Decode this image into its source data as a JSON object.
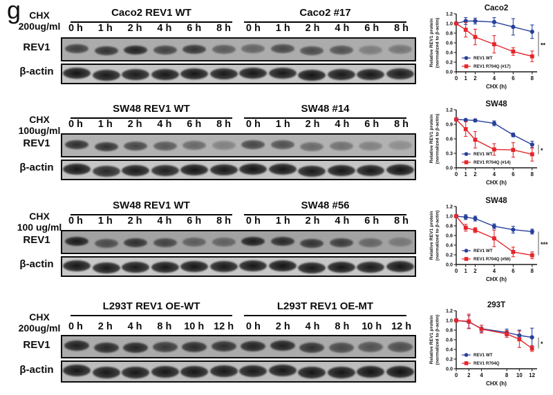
{
  "figure_label": "g",
  "colors": {
    "rev1_wt": "#27409B",
    "rev1_mut": "#E4262C",
    "sig_bracket": "#8a8a8a",
    "axis": "#1a1a1a"
  },
  "axis_labels": {
    "ylabel_line1": "Relative REV1 protein",
    "ylabel_line2": "(normalized to β-actin)",
    "xlabel": "CHX (h)"
  },
  "rows": [
    {
      "chx_line1": "CHX",
      "chx_line2": "200ug/ml",
      "blot_labels": [
        "REV1",
        "β-actin"
      ],
      "groups": [
        {
          "title": "Caco2 REV1 WT",
          "timepoints": [
            "0 h",
            "1 h",
            "2 h",
            "4 h",
            "6 h",
            "8 h"
          ]
        },
        {
          "title": "Caco2 #17",
          "timepoints": [
            "0 h",
            "1 h",
            "2 h",
            "4 h",
            "6 h",
            "8 h"
          ]
        }
      ],
      "blots": {
        "rev1": {
          "bg": "#acacac",
          "band_width": 34,
          "band_height": 13,
          "intensities": [
            0.7,
            0.78,
            0.88,
            0.68,
            0.76,
            0.52,
            0.46,
            0.64,
            0.62,
            0.58,
            0.3,
            0.35
          ]
        },
        "actin": {
          "bg": "#c6c6c6",
          "band_width": 40,
          "band_height": 16,
          "intensities": [
            0.96,
            0.93,
            0.92,
            0.94,
            0.95,
            0.93,
            0.95,
            0.94,
            0.96,
            0.93,
            0.94,
            0.92
          ]
        }
      }
    },
    {
      "chx_line1": "CHX",
      "chx_line2": "100ug/ml",
      "blot_labels": [
        "REV1",
        "β-actin"
      ],
      "groups": [
        {
          "title": "SW48 REV1 WT",
          "timepoints": [
            "0 h",
            "1 h",
            "2 h",
            "4 h",
            "6 h",
            "8 h"
          ]
        },
        {
          "title": "SW48 #14",
          "timepoints": [
            "0 h",
            "1 h",
            "2 h",
            "4 h",
            "6 h",
            "8 h"
          ]
        }
      ],
      "blots": {
        "rev1": {
          "bg": "#b2b2b2",
          "band_width": 34,
          "band_height": 13,
          "intensities": [
            0.8,
            0.78,
            0.66,
            0.55,
            0.45,
            0.3,
            0.66,
            0.6,
            0.44,
            0.4,
            0.3,
            0.22
          ]
        },
        "actin": {
          "bg": "#c6c6c6",
          "band_width": 40,
          "band_height": 16,
          "intensities": [
            0.95,
            0.85,
            0.93,
            0.9,
            0.96,
            0.94,
            0.96,
            0.95,
            0.93,
            0.95,
            0.94,
            0.96
          ]
        }
      }
    },
    {
      "chx_line1": "CHX",
      "chx_line2": "100 ug/ml",
      "blot_labels": [
        "REV1",
        "β-actin"
      ],
      "groups": [
        {
          "title": "SW48 REV1 WT",
          "timepoints": [
            "0 h",
            "1 h",
            "2 h",
            "4 h",
            "6 h",
            "8 h"
          ]
        },
        {
          "title": "SW48 #56",
          "timepoints": [
            "0 h",
            "1 h",
            "2 h",
            "4 h",
            "6 h",
            "8 h"
          ]
        }
      ],
      "blots": {
        "rev1": {
          "bg": "#a2a2a2",
          "band_width": 34,
          "band_height": 13,
          "intensities": [
            0.92,
            0.6,
            0.78,
            0.65,
            0.48,
            0.45,
            0.9,
            0.82,
            0.75,
            0.7,
            0.42,
            0.3
          ]
        },
        "actin": {
          "bg": "#c8c8c8",
          "band_width": 40,
          "band_height": 16,
          "intensities": [
            0.95,
            0.94,
            0.93,
            0.94,
            0.95,
            0.94,
            0.95,
            0.96,
            0.94,
            0.95,
            0.93,
            0.95
          ]
        }
      }
    },
    {
      "chx_line1": "CHX",
      "chx_line2": "200ug/ml",
      "blot_labels": [
        "REV1",
        "β-actin"
      ],
      "groups": [
        {
          "title": "L293T REV1 OE-WT",
          "timepoints": [
            "0 h",
            "2 h",
            "4 h",
            "8 h",
            "10 h",
            "12 h"
          ]
        },
        {
          "title": "L293T REV1 OE-MT",
          "timepoints": [
            "0 h",
            "2 h",
            "4 h",
            "8 h",
            "10 h",
            "12 h"
          ]
        }
      ],
      "blots": {
        "rev1": {
          "bg": "#ababab",
          "band_width": 36,
          "band_height": 15,
          "intensities": [
            0.88,
            0.84,
            0.86,
            0.74,
            0.82,
            0.8,
            0.86,
            0.88,
            0.78,
            0.64,
            0.58,
            0.6
          ]
        },
        "actin": {
          "bg": "#bdbdbd",
          "band_width": 40,
          "band_height": 17,
          "intensities": [
            0.95,
            0.93,
            0.94,
            0.94,
            0.95,
            0.94,
            0.93,
            0.94,
            0.95,
            0.95,
            0.96,
            0.97
          ]
        }
      }
    }
  ],
  "chart_data": [
    {
      "type": "line",
      "title": "Caco2",
      "xlabel": "CHX (h)",
      "ylabel": "Relative REV1 protein (normalized to β-actin)",
      "x": [
        0,
        1,
        2,
        4,
        6,
        8
      ],
      "xticks": [
        0,
        1,
        2,
        4,
        6,
        8
      ],
      "xlim_draw": 8.45,
      "ylim": [
        0,
        1.2
      ],
      "yticks": [
        0.0,
        0.2,
        0.4,
        0.6,
        0.8,
        1.0,
        1.2
      ],
      "series": [
        {
          "name": "REV1 WT",
          "color_key": "rev1_wt",
          "marker": "circle",
          "values": [
            1.0,
            1.05,
            1.05,
            1.03,
            0.93,
            0.83
          ],
          "errors": [
            0.02,
            0.07,
            0.06,
            0.09,
            0.17,
            0.14
          ]
        },
        {
          "name": "REV1 R704Q (#17)",
          "color_key": "rev1_mut",
          "marker": "square",
          "values": [
            1.0,
            0.87,
            0.72,
            0.57,
            0.42,
            0.32
          ],
          "errors": [
            0.02,
            0.15,
            0.16,
            0.18,
            0.08,
            0.11
          ]
        }
      ],
      "significance": "**",
      "legend_position": "bottom-left",
      "grid": false
    },
    {
      "type": "line",
      "title": "SW48",
      "xlabel": "CHX (h)",
      "ylabel": "Relative REV1 protein (normalized to β-actin)",
      "x": [
        0,
        1,
        2,
        4,
        6,
        8
      ],
      "xticks": [
        0,
        1,
        2,
        4,
        6,
        8
      ],
      "xlim_draw": 8.45,
      "ylim": [
        0,
        1.2
      ],
      "yticks": [
        0.0,
        0.3,
        0.6,
        0.9,
        1.2
      ],
      "series": [
        {
          "name": "REV1 WT",
          "color_key": "rev1_wt",
          "marker": "circle",
          "values": [
            1.0,
            0.99,
            0.98,
            0.92,
            0.68,
            0.48
          ],
          "errors": [
            0.01,
            0.02,
            0.03,
            0.05,
            0.04,
            0.07
          ]
        },
        {
          "name": "REV1 R704Q (#14)",
          "color_key": "rev1_mut",
          "marker": "square",
          "values": [
            1.0,
            0.8,
            0.58,
            0.38,
            0.37,
            0.28
          ],
          "errors": [
            0.01,
            0.15,
            0.17,
            0.12,
            0.15,
            0.14
          ]
        }
      ],
      "significance": "*",
      "legend_position": "bottom-left",
      "grid": false
    },
    {
      "type": "line",
      "title": "SW48",
      "xlabel": "CHX (h)",
      "ylabel": "Relative REV1 protein (normalized to β-actin)",
      "x": [
        0,
        1,
        2,
        4,
        6,
        8
      ],
      "xticks": [
        0,
        1,
        2,
        4,
        6,
        8
      ],
      "xlim_draw": 8.45,
      "ylim": [
        0,
        1.2
      ],
      "yticks": [
        0.0,
        0.2,
        0.4,
        0.6,
        0.8,
        1.0,
        1.2
      ],
      "series": [
        {
          "name": "REV1 WT",
          "color_key": "rev1_wt",
          "marker": "circle",
          "values": [
            1.0,
            0.98,
            0.95,
            0.79,
            0.72,
            0.68
          ],
          "errors": [
            0.02,
            0.05,
            0.05,
            0.05,
            0.07,
            0.05
          ]
        },
        {
          "name": "REV1 R704Q (#56)",
          "color_key": "rev1_mut",
          "marker": "square",
          "values": [
            1.0,
            0.76,
            0.71,
            0.54,
            0.26,
            0.19
          ],
          "errors": [
            0.03,
            0.07,
            0.05,
            0.17,
            0.1,
            0.07
          ]
        }
      ],
      "significance": "***",
      "legend_position": "bottom-left",
      "grid": false
    },
    {
      "type": "line",
      "title": "293T",
      "xlabel": "CHX (h)",
      "ylabel": "Relative REV1 protein (normalized to β-actin)",
      "x": [
        0,
        2,
        4,
        8,
        10,
        12
      ],
      "xticks": [
        0,
        2,
        4,
        8,
        10,
        12
      ],
      "xlim_draw": 12.7,
      "ylim": [
        0,
        1.2
      ],
      "yticks": [
        0.0,
        0.2,
        0.4,
        0.6,
        0.8,
        1.0,
        1.2
      ],
      "series": [
        {
          "name": "REV1 WT",
          "color_key": "rev1_wt",
          "marker": "circle",
          "values": [
            1.0,
            0.97,
            0.83,
            0.75,
            0.69,
            0.65
          ],
          "errors": [
            0.02,
            0.13,
            0.07,
            0.07,
            0.11,
            0.19
          ]
        },
        {
          "name": "REV1 R704Q",
          "color_key": "rev1_mut",
          "marker": "square",
          "values": [
            1.0,
            0.98,
            0.82,
            0.72,
            0.61,
            0.42
          ],
          "errors": [
            0.02,
            0.15,
            0.08,
            0.07,
            0.17,
            0.06
          ]
        }
      ],
      "significance": "*",
      "legend_position": "bottom-left",
      "grid": false
    }
  ]
}
